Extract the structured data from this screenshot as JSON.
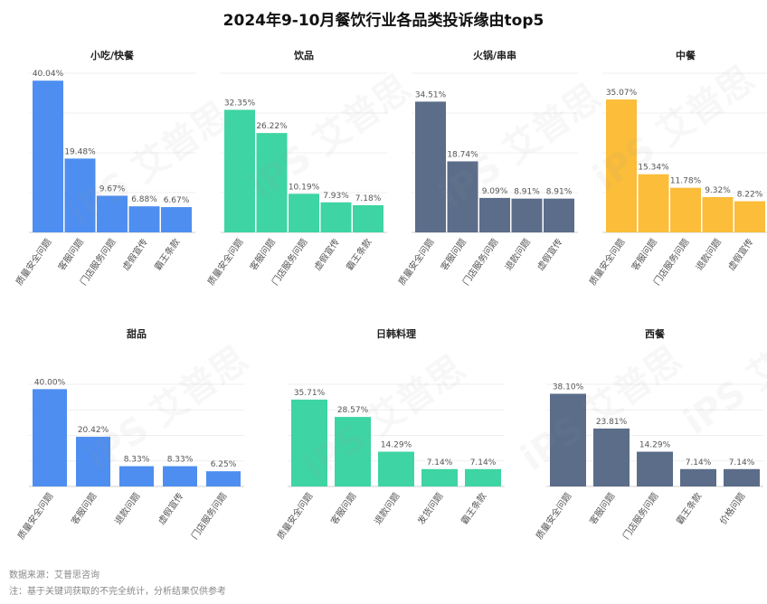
{
  "page_title": "2024年9-10月餐饮行业各品类投诉缘由top5",
  "footer": {
    "source": "数据来源：艾普思咨询",
    "note": "注：基于关键词获取的不完全统计，分析结果仅供参考"
  },
  "watermark": "iPS 艾普思",
  "colors": {
    "blue": "#4e8ef0",
    "green": "#3ed4a4",
    "slate": "#5b6d89",
    "yellow": "#fbbd3a"
  },
  "chart_data": [
    {
      "type": "bar",
      "title": "小吃/快餐",
      "color": "blue",
      "ylim": [
        0,
        42
      ],
      "categories": [
        "质量安全问题",
        "客服问题",
        "门店服务问题",
        "虚假宣传",
        "霸王条款"
      ],
      "values": [
        40.04,
        19.48,
        9.67,
        6.88,
        6.67
      ],
      "labels": [
        "40.04%",
        "19.48%",
        "9.67%",
        "6.88%",
        "6.67%"
      ]
    },
    {
      "type": "bar",
      "title": "饮品",
      "color": "green",
      "ylim": [
        0,
        42
      ],
      "categories": [
        "质量安全问题",
        "客服问题",
        "门店服务问题",
        "虚假宣传",
        "霸王条款"
      ],
      "values": [
        32.35,
        26.22,
        10.19,
        7.93,
        7.18
      ],
      "labels": [
        "32.35%",
        "26.22%",
        "10.19%",
        "7.93%",
        "7.18%"
      ]
    },
    {
      "type": "bar",
      "title": "火锅/串串",
      "color": "slate",
      "ylim": [
        0,
        42
      ],
      "categories": [
        "质量安全问题",
        "客服问题",
        "门店服务问题",
        "退款问题",
        "虚假宣传"
      ],
      "values": [
        34.51,
        18.74,
        9.09,
        8.91,
        8.91
      ],
      "labels": [
        "34.51%",
        "18.74%",
        "9.09%",
        "8.91%",
        "8.91%"
      ]
    },
    {
      "type": "bar",
      "title": "中餐",
      "color": "yellow",
      "ylim": [
        0,
        42
      ],
      "categories": [
        "质量安全问题",
        "客服问题",
        "门店服务问题",
        "退款问题",
        "虚假宣传"
      ],
      "values": [
        35.07,
        15.34,
        11.78,
        9.32,
        8.22
      ],
      "labels": [
        "35.07%",
        "15.34%",
        "11.78%",
        "9.32%",
        "8.22%"
      ]
    },
    {
      "type": "bar",
      "title": "甜品",
      "color": "blue",
      "ylim": [
        0,
        42
      ],
      "categories": [
        "质量安全问题",
        "客服问题",
        "退款问题",
        "虚假宣传",
        "门店服务问题"
      ],
      "values": [
        40.0,
        20.42,
        8.33,
        8.33,
        6.25
      ],
      "labels": [
        "40.00%",
        "20.42%",
        "8.33%",
        "8.33%",
        "6.25%"
      ]
    },
    {
      "type": "bar",
      "title": "日韩料理",
      "color": "green",
      "ylim": [
        0,
        42
      ],
      "categories": [
        "质量安全问题",
        "客服问题",
        "退款问题",
        "发货问题",
        "霸王条款"
      ],
      "values": [
        35.71,
        28.57,
        14.29,
        7.14,
        7.14
      ],
      "labels": [
        "35.71%",
        "28.57%",
        "14.29%",
        "7.14%",
        "7.14%"
      ]
    },
    {
      "type": "bar",
      "title": "西餐",
      "color": "slate",
      "ylim": [
        0,
        42
      ],
      "categories": [
        "质量安全问题",
        "客服问题",
        "门店服务问题",
        "霸王条款",
        "价格问题"
      ],
      "values": [
        38.1,
        23.81,
        14.29,
        7.14,
        7.14
      ],
      "labels": [
        "38.10%",
        "23.81%",
        "14.29%",
        "7.14%",
        "7.14%"
      ]
    }
  ]
}
